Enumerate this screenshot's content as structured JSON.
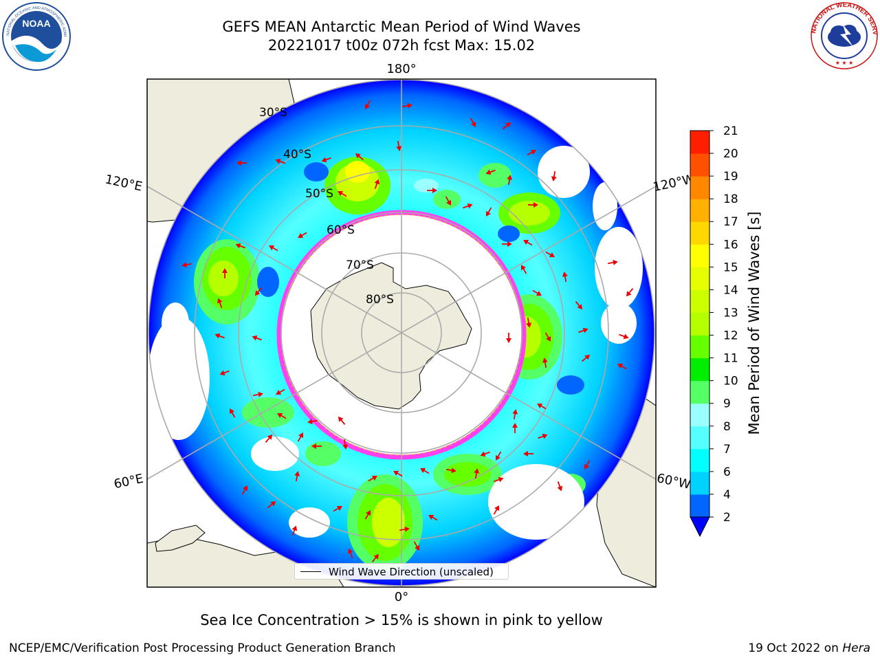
{
  "header": {
    "title_line1": "GEFS MEAN Antarctic Mean Period of Wind Waves",
    "title_line2": "20221017 t00z 072h fcst   Max: 15.02"
  },
  "logos": {
    "left": "NOAA",
    "left_ring_text": "NATIONAL OCEANIC AND ATMOSPHERIC ADMINISTRATION · U.S. DEPARTMENT OF COMMERCE",
    "right_ring_text": "NATIONAL WEATHER SERVICE"
  },
  "map": {
    "projection": "south-polar-stereographic",
    "longitude_labels": [
      "180°",
      "120°E",
      "120°W",
      "60°E",
      "60°W",
      "0°"
    ],
    "latitude_labels": [
      "30°S",
      "40°S",
      "50°S",
      "60°S",
      "70°S",
      "80°S"
    ],
    "colors": {
      "land": "#eeecdc",
      "ice_edge": "#ff40f0",
      "arrow": "#ee0000",
      "grid": "#aaaaaa"
    },
    "legend": "Wind Wave Direction (unscaled)"
  },
  "colorbar": {
    "label": "Mean Period of Wind Waves [s]",
    "ticks": [
      "2",
      "4",
      "6",
      "7",
      "8",
      "9",
      "10",
      "11",
      "12",
      "13",
      "14",
      "15",
      "16",
      "17",
      "18",
      "19",
      "20",
      "21"
    ],
    "colors": [
      "#0066ff",
      "#00d2ff",
      "#00ffff",
      "#55ffff",
      "#99ffff",
      "#55ff66",
      "#00ee00",
      "#66ff00",
      "#b6ff00",
      "#ccff00",
      "#e6ff00",
      "#ffff00",
      "#ffd800",
      "#ffb000",
      "#ff8800",
      "#ff5000",
      "#ff1e00"
    ],
    "extend_color": "#0000ff"
  },
  "caption": "Sea Ice Concentration > 15% is shown in pink to yellow",
  "footer": {
    "left": "NCEP/EMC/Verification Post Processing Product Generation Branch",
    "date": "19 Oct 2022 on ",
    "machine": "Hera"
  }
}
